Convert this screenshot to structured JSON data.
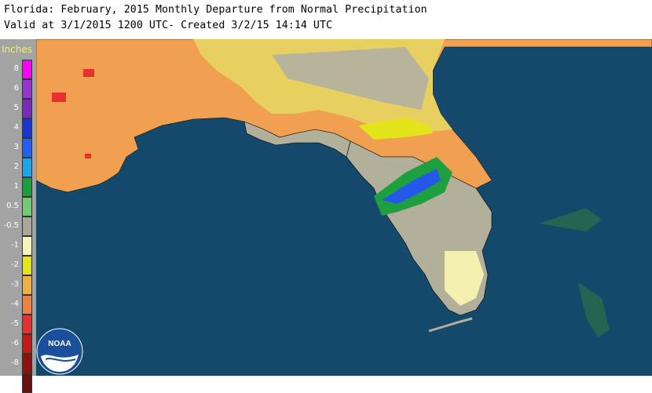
{
  "title": {
    "line1": "Florida: February, 2015 Monthly Departure from Normal Precipitation",
    "line2": "Valid at 3/1/2015 1200 UTC- Created 3/2/15 14:14 UTC"
  },
  "legend": {
    "title": "Inches",
    "items": [
      {
        "label": "8",
        "color": "#ff00ff"
      },
      {
        "label": "6",
        "color": "#9b30d8"
      },
      {
        "label": "5",
        "color": "#7a28c0"
      },
      {
        "label": "4",
        "color": "#1a34d6"
      },
      {
        "label": "3",
        "color": "#2060ff"
      },
      {
        "label": "2",
        "color": "#1aa6ec"
      },
      {
        "label": "1",
        "color": "#14a03c"
      },
      {
        "label": "0.5",
        "color": "#70cc70"
      },
      {
        "label": "-0.5",
        "color": "#a8a89a"
      },
      {
        "label": "-1",
        "color": "#f6f4b8"
      },
      {
        "label": "-2",
        "color": "#e4e41a"
      },
      {
        "label": "-3",
        "color": "#f0b040"
      },
      {
        "label": "-4",
        "color": "#f08040"
      },
      {
        "label": "-5",
        "color": "#e83030"
      },
      {
        "label": "-6",
        "color": "#c81818"
      },
      {
        "label": "-8",
        "color": "#901010"
      },
      {
        "label": "",
        "color": "#6a1010"
      }
    ]
  },
  "logo": {
    "text": "NOAA"
  },
  "colors": {
    "ocean": "#15496b",
    "border": "#000000"
  }
}
